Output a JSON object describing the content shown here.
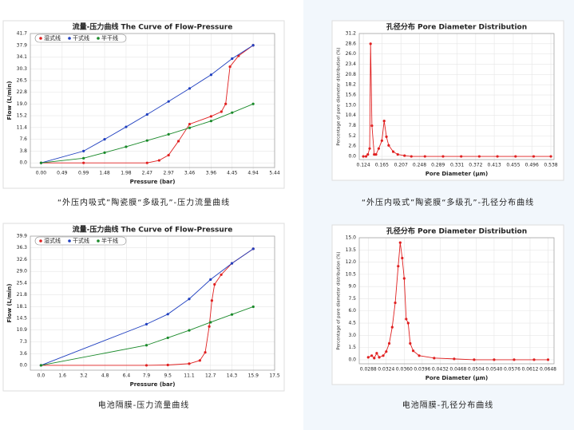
{
  "chart_data": [
    {
      "type": "line",
      "title": "流量-压力曲线 The Curve of Flow-Pressure",
      "x_label": "Pressure (bar)",
      "y_label": "Flow (L/min)",
      "caption": "“外压内吸式”陶瓷膜“多级孔”-压力流量曲线",
      "xlim": [
        -0.25,
        5.44
      ],
      "ylim": [
        -1.5,
        41.7
      ],
      "grid": true,
      "xticks": [
        {
          "value": 0,
          "label": "0.00"
        },
        0.49,
        0.99,
        1.48,
        1.98,
        2.47,
        2.97,
        3.46,
        3.96,
        4.45,
        4.94,
        5.44
      ],
      "yticks": [
        {
          "value": 0,
          "label": "0.0"
        },
        3.8,
        7.6,
        11.4,
        15.2,
        {
          "value": 19,
          "label": "19.0"
        },
        22.8,
        26.5,
        30.3,
        34.1,
        37.9,
        41.7
      ],
      "series": [
        {
          "name": "湿式线",
          "color": "#e02020",
          "x": [
            0,
            0.99,
            2.47,
            2.75,
            2.97,
            3.2,
            3.46,
            3.96,
            4.2,
            4.3,
            4.4,
            4.6,
            4.94
          ],
          "values": [
            0,
            0,
            0,
            0.8,
            2.5,
            7,
            12.5,
            15,
            16.5,
            19,
            31,
            34.5,
            37.9
          ]
        },
        {
          "name": "干式线",
          "color": "#2040c0",
          "x": [
            0,
            0.99,
            1.48,
            1.98,
            2.47,
            2.97,
            3.46,
            3.96,
            4.45,
            4.94
          ],
          "values": [
            0,
            3.8,
            7.6,
            11.6,
            15.6,
            19.8,
            24,
            28.4,
            33.6,
            37.9
          ]
        },
        {
          "name": "半干线",
          "color": "#1a8a2a",
          "x": [
            0,
            0.99,
            1.48,
            1.98,
            2.47,
            2.97,
            3.46,
            3.96,
            4.45,
            4.94
          ],
          "values": [
            0,
            1.5,
            3.3,
            5.2,
            7.2,
            9.2,
            11.3,
            13.5,
            16.2,
            19
          ]
        }
      ]
    },
    {
      "type": "line",
      "title": "孔径分布 Pore Diameter Distribution",
      "x_label": "Pore Diameter (μm)",
      "y_label": "Percentage of pore diameter distribution (%)",
      "caption": "“外压内吸式”陶瓷膜“多级孔”-孔径分布曲线",
      "xlim": [
        0.115,
        0.545
      ],
      "ylim": [
        -0.8,
        31.2
      ],
      "grid": true,
      "xticks": [
        0.124,
        0.165,
        0.207,
        0.248,
        0.289,
        0.331,
        0.372,
        0.413,
        0.455,
        0.496,
        0.538
      ],
      "yticks": [
        {
          "value": 0,
          "label": "0.0"
        },
        2.6,
        5.2,
        7.8,
        10.4,
        {
          "value": 13,
          "label": "13.0"
        },
        15.6,
        18.2,
        20.8,
        23.4,
        {
          "value": 26,
          "label": "26.0"
        },
        28.6,
        31.2
      ],
      "series": [
        {
          "color": "#e02020",
          "x": [
            0.124,
            0.13,
            0.134,
            0.138,
            0.14,
            0.143,
            0.148,
            0.152,
            0.158,
            0.165,
            0.17,
            0.175,
            0.18,
            0.19,
            0.2,
            0.215,
            0.23,
            0.26,
            0.3,
            0.34,
            0.38,
            0.42,
            0.46,
            0.5,
            0.538
          ],
          "values": [
            0,
            0,
            0.5,
            2,
            28.6,
            7.8,
            0.5,
            0.5,
            2,
            4,
            9,
            5,
            2.8,
            1.2,
            0.5,
            0.2,
            0,
            0,
            0,
            0,
            0,
            0,
            0,
            0,
            0
          ]
        }
      ]
    },
    {
      "type": "line",
      "title": "流量-压力曲线 The Curve of Flow-Pressure",
      "x_label": "Pressure (bar)",
      "y_label": "Flow (L/min)",
      "caption": "电池隔膜-压力流量曲线",
      "xlim": [
        -0.8,
        17.5
      ],
      "ylim": [
        -1.5,
        39.9
      ],
      "grid": true,
      "xticks": [
        {
          "value": 0,
          "label": "0.0"
        },
        1.6,
        3.2,
        4.8,
        6.4,
        7.9,
        9.5,
        11.1,
        12.7,
        14.3,
        15.9,
        17.5
      ],
      "yticks": [
        {
          "value": 0,
          "label": "0.0"
        },
        3.6,
        7.3,
        10.9,
        14.5,
        18.1,
        21.8,
        25.4,
        {
          "value": 29,
          "label": "29.0"
        },
        32.6,
        36.3,
        39.9
      ],
      "series": [
        {
          "name": "湿式线",
          "color": "#e02020",
          "x": [
            0,
            7.9,
            9.5,
            11.1,
            11.9,
            12.3,
            12.6,
            12.8,
            13,
            13.5,
            14.3,
            15.9
          ],
          "values": [
            0,
            0,
            0.1,
            0.5,
            1.5,
            4,
            12,
            20,
            25,
            28,
            31.5,
            36
          ]
        },
        {
          "name": "干式线",
          "color": "#2040c0",
          "x": [
            0,
            7.9,
            9.5,
            11.1,
            12.7,
            14.3,
            15.9
          ],
          "values": [
            0,
            12.7,
            15.8,
            20.5,
            26.5,
            31.5,
            36
          ]
        },
        {
          "name": "半干线",
          "color": "#1a8a2a",
          "x": [
            0,
            7.9,
            9.5,
            11.1,
            12.7,
            14.3,
            15.9
          ],
          "values": [
            0,
            6.2,
            8.5,
            10.8,
            13.3,
            15.7,
            18.1
          ]
        }
      ]
    },
    {
      "type": "line",
      "title": "孔径分布 Pore Diameter Distribution",
      "x_label": "Pore Diameter (μm)",
      "y_label": "Percentage of pore diameter distribution (%)",
      "caption": "电池隔膜-孔径分布曲线",
      "xlim": [
        0.027,
        0.066
      ],
      "ylim": [
        -0.5,
        15
      ],
      "grid": true,
      "xticks": [
        0.0288,
        0.0324,
        {
          "value": 0.036,
          "label": "0.0360"
        },
        0.0396,
        0.0432,
        0.0468,
        0.0504,
        {
          "value": 0.054,
          "label": "0.0540"
        },
        0.0576,
        0.0612,
        0.0648
      ],
      "yticks": [
        {
          "value": 0,
          "label": "0.0"
        },
        1.5,
        {
          "value": 3,
          "label": "3.0"
        },
        4.5,
        {
          "value": 6,
          "label": "6.0"
        },
        7.5,
        {
          "value": 9,
          "label": "9.0"
        },
        10.5,
        {
          "value": 12,
          "label": "12.0"
        },
        13.5,
        {
          "value": 15,
          "label": "15.0"
        }
      ],
      "series": [
        {
          "color": "#e02020",
          "x": [
            0.0288,
            0.0295,
            0.03,
            0.0305,
            0.031,
            0.0318,
            0.0324,
            0.033,
            0.0336,
            0.0342,
            0.0348,
            0.0352,
            0.0356,
            0.036,
            0.0364,
            0.0368,
            0.0372,
            0.0378,
            0.039,
            0.042,
            0.046,
            0.05,
            0.054,
            0.058,
            0.062,
            0.0648
          ],
          "values": [
            0.3,
            0.5,
            0.2,
            0.8,
            0.3,
            0.5,
            1,
            2,
            4,
            7,
            11.5,
            14.4,
            12.5,
            10,
            5,
            4.5,
            2,
            1.1,
            0.5,
            0.2,
            0.1,
            0,
            0,
            0,
            0,
            0
          ]
        }
      ]
    }
  ]
}
